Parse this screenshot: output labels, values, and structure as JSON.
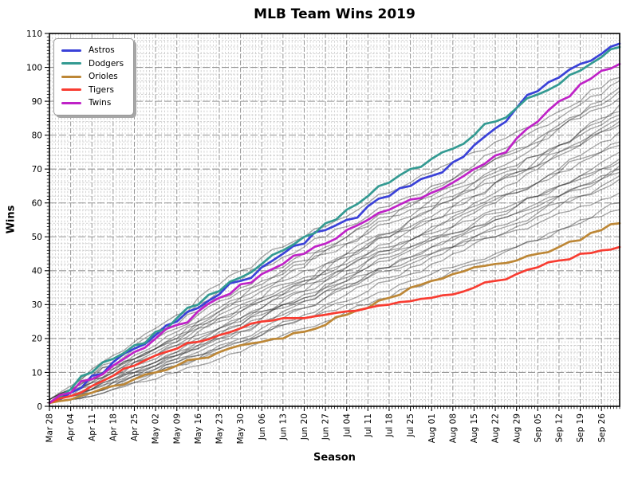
{
  "chart_data": {
    "type": "line",
    "title": "MLB Team Wins 2019",
    "xlabel": "Season",
    "ylabel": "Wins",
    "ylim": [
      0,
      110
    ],
    "xlim_days": [
      0,
      188
    ],
    "ytick_step": 10,
    "y_minor_grid_step": 2,
    "y_minor_tick_step": 1,
    "x_major_tick_step_days": 7,
    "x_minor_tick_step_days": 1,
    "grid": {
      "major_on": true,
      "minor_on": true,
      "major_color": "#949494",
      "minor_color": "#c8c8c8"
    },
    "legend": {
      "position": "upper-left",
      "entries": [
        "Astros",
        "Dodgers",
        "Orioles",
        "Tigers",
        "Twins"
      ]
    },
    "x_tick_days": [
      0,
      7,
      14,
      21,
      28,
      35,
      42,
      49,
      56,
      63,
      70,
      77,
      84,
      91,
      98,
      105,
      112,
      119,
      126,
      133,
      140,
      147,
      154,
      161,
      168,
      175,
      182
    ],
    "x_tick_labels": [
      "Mar 28",
      "Apr 04",
      "Apr 11",
      "Apr 18",
      "Apr 25",
      "May 02",
      "May 09",
      "May 16",
      "May 23",
      "May 30",
      "Jun 06",
      "Jun 13",
      "Jun 20",
      "Jun 27",
      "Jul 04",
      "Jul 11",
      "Jul 18",
      "Jul 25",
      "Aug 01",
      "Aug 08",
      "Aug 15",
      "Aug 22",
      "Aug 29",
      "Sep 05",
      "Sep 12",
      "Sep 19",
      "Sep 26"
    ],
    "x_days": [
      0,
      7,
      14,
      21,
      28,
      35,
      42,
      49,
      56,
      63,
      70,
      77,
      84,
      91,
      98,
      105,
      112,
      119,
      126,
      133,
      140,
      147,
      154,
      161,
      168,
      175,
      182,
      188
    ],
    "series": [
      {
        "name": "Astros",
        "color": "#3a41d8",
        "final_wins": 107,
        "values": [
          1,
          4,
          9,
          13,
          17,
          21,
          25,
          29,
          33,
          37,
          41,
          45,
          48,
          52,
          55,
          59,
          62,
          65,
          68,
          72,
          77,
          82,
          88,
          93,
          97,
          101,
          104,
          107
        ]
      },
      {
        "name": "Dodgers",
        "color": "#339a92",
        "final_wins": 106,
        "values": [
          1,
          5,
          10,
          14,
          18,
          22,
          26,
          30,
          34,
          38,
          42,
          46,
          50,
          54,
          58,
          62,
          66,
          70,
          73,
          76,
          80,
          84,
          88,
          92,
          95,
          99,
          103,
          106
        ]
      },
      {
        "name": "Orioles",
        "color": "#bd8736",
        "final_wins": 54,
        "values": [
          1,
          2,
          4,
          6,
          8,
          10,
          12,
          14,
          16,
          18,
          19,
          20,
          22,
          24,
          27,
          29,
          32,
          35,
          37,
          39,
          41,
          42,
          43,
          45,
          47,
          49,
          52,
          54
        ]
      },
      {
        "name": "Tigers",
        "color": "#f83c31",
        "final_wins": 47,
        "values": [
          1,
          3,
          6,
          9,
          12,
          15,
          17,
          19,
          21,
          23,
          25,
          26,
          26,
          27,
          28,
          29,
          30,
          31,
          32,
          33,
          35,
          37,
          39,
          41,
          43,
          45,
          46,
          47
        ]
      },
      {
        "name": "Twins",
        "color": "#bf22c7",
        "final_wins": 101,
        "values": [
          1,
          4,
          8,
          12,
          16,
          20,
          24,
          28,
          32,
          36,
          39,
          42,
          45,
          48,
          52,
          55,
          58,
          61,
          63,
          66,
          70,
          74,
          79,
          84,
          90,
          95,
          99,
          101
        ]
      }
    ],
    "other_teams": {
      "label": "unlabeled gray team lines",
      "color": "#2e2e2e",
      "opacity": 0.42,
      "series": [
        [
          2,
          6,
          11,
          15,
          19,
          23,
          27,
          32,
          36,
          40,
          44,
          47,
          50,
          53,
          56,
          60,
          63,
          66,
          69,
          72,
          75,
          78,
          81,
          83,
          87,
          90,
          94,
          97
        ],
        [
          1,
          4,
          7,
          11,
          14,
          17,
          21,
          25,
          29,
          32,
          36,
          39,
          42,
          46,
          50,
          54,
          57,
          60,
          64,
          67,
          71,
          75,
          78,
          82,
          85,
          89,
          92,
          96
        ],
        [
          1,
          3,
          5,
          8,
          10,
          13,
          16,
          19,
          23,
          25,
          29,
          33,
          36,
          39,
          43,
          47,
          51,
          55,
          58,
          62,
          66,
          70,
          73,
          77,
          82,
          86,
          90,
          94
        ],
        [
          1,
          4,
          7,
          10,
          14,
          17,
          20,
          24,
          28,
          31,
          34,
          38,
          41,
          45,
          48,
          52,
          55,
          59,
          62,
          65,
          69,
          73,
          75,
          79,
          83,
          86,
          89,
          93
        ],
        [
          2,
          5,
          10,
          14,
          18,
          22,
          25,
          30,
          34,
          37,
          41,
          44,
          47,
          50,
          53,
          56,
          59,
          62,
          65,
          67,
          70,
          73,
          76,
          78,
          82,
          85,
          88,
          91
        ],
        [
          1,
          3,
          4,
          7,
          10,
          12,
          15,
          18,
          21,
          24,
          28,
          31,
          34,
          37,
          41,
          45,
          48,
          52,
          55,
          59,
          62,
          66,
          69,
          73,
          77,
          81,
          85,
          89
        ],
        [
          1,
          3,
          6,
          10,
          13,
          16,
          19,
          23,
          26,
          29,
          32,
          36,
          38,
          42,
          45,
          49,
          51,
          55,
          58,
          61,
          64,
          68,
          70,
          74,
          77,
          81,
          84,
          87
        ],
        [
          2,
          5,
          9,
          13,
          17,
          21,
          24,
          28,
          32,
          35,
          39,
          41,
          45,
          47,
          50,
          53,
          56,
          58,
          61,
          64,
          66,
          69,
          71,
          74,
          77,
          80,
          83,
          86
        ],
        [
          1,
          3,
          4,
          7,
          9,
          12,
          14,
          17,
          20,
          23,
          26,
          30,
          32,
          36,
          39,
          43,
          46,
          49,
          53,
          56,
          60,
          63,
          66,
          70,
          74,
          77,
          82,
          85
        ],
        [
          1,
          3,
          6,
          9,
          13,
          15,
          18,
          22,
          25,
          28,
          31,
          34,
          37,
          40,
          44,
          47,
          50,
          53,
          56,
          59,
          62,
          66,
          68,
          71,
          75,
          78,
          81,
          84
        ],
        [
          2,
          5,
          9,
          12,
          17,
          20,
          23,
          27,
          31,
          34,
          37,
          40,
          43,
          46,
          48,
          51,
          54,
          56,
          59,
          61,
          64,
          66,
          69,
          71,
          75,
          77,
          81,
          83
        ],
        [
          1,
          2,
          4,
          6,
          9,
          11,
          14,
          16,
          19,
          22,
          25,
          28,
          31,
          34,
          37,
          41,
          44,
          47,
          50,
          53,
          57,
          60,
          63,
          66,
          70,
          74,
          78,
          81
        ],
        [
          1,
          3,
          5,
          9,
          12,
          14,
          17,
          20,
          23,
          26,
          29,
          32,
          34,
          37,
          41,
          44,
          46,
          49,
          52,
          55,
          58,
          61,
          63,
          66,
          69,
          73,
          75,
          78
        ],
        [
          2,
          5,
          8,
          12,
          15,
          18,
          22,
          25,
          28,
          32,
          35,
          37,
          40,
          42,
          45,
          48,
          50,
          52,
          55,
          57,
          59,
          62,
          64,
          66,
          69,
          72,
          75,
          77
        ],
        [
          1,
          2,
          4,
          6,
          8,
          11,
          13,
          15,
          18,
          20,
          23,
          26,
          29,
          32,
          35,
          38,
          41,
          44,
          47,
          50,
          53,
          56,
          59,
          62,
          65,
          68,
          72,
          75
        ],
        [
          1,
          3,
          5,
          8,
          11,
          13,
          16,
          19,
          22,
          24,
          27,
          30,
          32,
          35,
          38,
          41,
          43,
          46,
          49,
          51,
          54,
          57,
          59,
          62,
          65,
          68,
          70,
          73
        ],
        [
          1,
          4,
          8,
          11,
          14,
          17,
          20,
          24,
          27,
          30,
          32,
          35,
          37,
          40,
          42,
          45,
          47,
          49,
          51,
          53,
          55,
          58,
          60,
          62,
          65,
          67,
          70,
          72
        ],
        [
          1,
          2,
          4,
          6,
          8,
          10,
          12,
          14,
          17,
          19,
          22,
          25,
          27,
          30,
          33,
          36,
          38,
          41,
          44,
          47,
          50,
          53,
          55,
          58,
          62,
          65,
          68,
          71
        ],
        [
          1,
          3,
          5,
          8,
          11,
          13,
          15,
          18,
          21,
          23,
          26,
          29,
          31,
          34,
          36,
          39,
          41,
          44,
          47,
          49,
          52,
          55,
          57,
          60,
          62,
          65,
          67,
          70
        ],
        [
          1,
          4,
          8,
          10,
          14,
          17,
          19,
          23,
          26,
          28,
          31,
          33,
          36,
          38,
          40,
          43,
          45,
          47,
          49,
          51,
          53,
          55,
          57,
          59,
          62,
          64,
          67,
          69
        ],
        [
          1,
          2,
          3,
          5,
          7,
          10,
          12,
          14,
          16,
          18,
          21,
          24,
          26,
          29,
          31,
          34,
          37,
          39,
          42,
          45,
          48,
          50,
          53,
          56,
          59,
          62,
          65,
          68
        ],
        [
          1,
          3,
          5,
          7,
          10,
          12,
          15,
          17,
          20,
          22,
          25,
          27,
          29,
          32,
          35,
          38,
          40,
          42,
          45,
          47,
          50,
          52,
          54,
          57,
          60,
          62,
          64,
          67
        ],
        [
          1,
          4,
          7,
          9,
          13,
          15,
          18,
          21,
          23,
          26,
          28,
          30,
          33,
          35,
          37,
          39,
          41,
          43,
          45,
          47,
          49,
          50,
          52,
          54,
          57,
          59,
          61,
          63
        ],
        [
          1,
          2,
          3,
          5,
          7,
          8,
          10,
          12,
          14,
          16,
          19,
          21,
          23,
          25,
          28,
          30,
          32,
          35,
          37,
          40,
          42,
          44,
          47,
          49,
          52,
          55,
          58,
          60
        ],
        [
          1,
          2,
          4,
          6,
          9,
          10,
          13,
          15,
          17,
          19,
          21,
          24,
          26,
          28,
          30,
          32,
          34,
          37,
          39,
          41,
          43,
          45,
          47,
          49,
          52,
          54,
          56,
          58
        ]
      ]
    }
  }
}
